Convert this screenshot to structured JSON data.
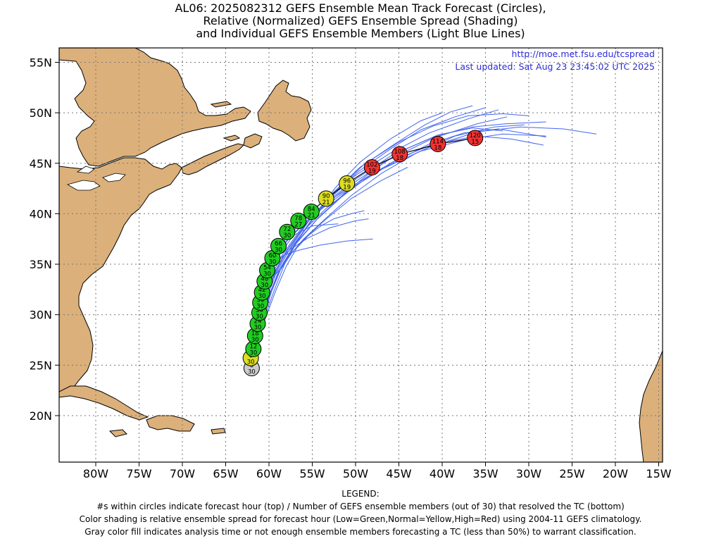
{
  "title": {
    "line1": "AL06: 2025082312 GEFS Ensemble Mean Track Forecast (Circles),",
    "line2": "Relative (Normalized) GEFS Ensemble Spread (Shading)",
    "line3": "and Individual GEFS Ensemble Members (Light Blue Lines)"
  },
  "credit": {
    "url": "http://moe.met.fsu.edu/tcspread",
    "updated": "Last updated: Sat Aug 23 23:45:02 UTC 2025"
  },
  "axes": {
    "lat_labels": [
      "55N",
      "50N",
      "45N",
      "40N",
      "35N",
      "30N",
      "25N",
      "20N"
    ],
    "lon_labels": [
      "80W",
      "75W",
      "70W",
      "65W",
      "60W",
      "55W",
      "50W",
      "45W",
      "40W",
      "35W",
      "30W",
      "25W",
      "20W",
      "15W"
    ]
  },
  "legend": {
    "heading": "LEGEND:",
    "line1": "#s within circles indicate forecast hour (top) / Number of GEFS ensemble members (out of 30) that resolved the TC (bottom)",
    "line2": "Color shading is relative ensemble spread for forecast hour (Low=Green,Normal=Yellow,High=Red) using 2004-11 GEFS climatology.",
    "line3": "Gray color fill indicates analysis time or not enough ensemble members forecasting a TC (less than 50%) to warrant classification."
  },
  "colors": {
    "land": "#dcb07a",
    "member_line": "#4466ee",
    "low": "#22cc22",
    "normal": "#dddd22",
    "high": "#ee3333",
    "analysis": "#cccccc"
  },
  "mean_track": [
    {
      "hour": "0",
      "members": "30",
      "spread": "analysis",
      "lon": -62.0,
      "lat": 24.7
    },
    {
      "hour": "6",
      "members": "30",
      "spread": "normal",
      "lon": -62.1,
      "lat": 25.7
    },
    {
      "hour": "12",
      "members": "30",
      "spread": "low",
      "lon": -61.8,
      "lat": 26.6
    },
    {
      "hour": "18",
      "members": "30",
      "spread": "low",
      "lon": -61.6,
      "lat": 27.9
    },
    {
      "hour": "24",
      "members": "30",
      "spread": "low",
      "lon": -61.3,
      "lat": 29.1
    },
    {
      "hour": "30",
      "members": "30",
      "spread": "low",
      "lon": -61.1,
      "lat": 30.2
    },
    {
      "hour": "36",
      "members": "30",
      "spread": "low",
      "lon": -61.0,
      "lat": 31.2
    },
    {
      "hour": "42",
      "members": "30",
      "spread": "low",
      "lon": -60.8,
      "lat": 32.2
    },
    {
      "hour": "48",
      "members": "30",
      "spread": "low",
      "lon": -60.5,
      "lat": 33.3
    },
    {
      "hour": "54",
      "members": "30",
      "spread": "low",
      "lon": -60.2,
      "lat": 34.4
    },
    {
      "hour": "60",
      "members": "30",
      "spread": "low",
      "lon": -59.6,
      "lat": 35.6
    },
    {
      "hour": "66",
      "members": "30",
      "spread": "low",
      "lon": -58.9,
      "lat": 36.8
    },
    {
      "hour": "72",
      "members": "30",
      "spread": "low",
      "lon": -57.9,
      "lat": 38.2
    },
    {
      "hour": "78",
      "members": "27",
      "spread": "low",
      "lon": -56.6,
      "lat": 39.3
    },
    {
      "hour": "84",
      "members": "21",
      "spread": "low",
      "lon": -55.1,
      "lat": 40.2
    },
    {
      "hour": "90",
      "members": "21",
      "spread": "normal",
      "lon": -53.4,
      "lat": 41.5
    },
    {
      "hour": "96",
      "members": "19",
      "spread": "normal",
      "lon": -51.0,
      "lat": 43.0
    },
    {
      "hour": "102",
      "members": "19",
      "spread": "high",
      "lon": -48.1,
      "lat": 44.6
    },
    {
      "hour": "108",
      "members": "18",
      "spread": "high",
      "lon": -44.9,
      "lat": 45.9
    },
    {
      "hour": "114",
      "members": "18",
      "spread": "high",
      "lon": -40.5,
      "lat": 46.9
    },
    {
      "hour": "120",
      "members": "15",
      "spread": "high",
      "lon": -36.2,
      "lat": 47.5
    }
  ],
  "members": [
    [
      [
        -62.0,
        24.7
      ],
      [
        -61.9,
        27.0
      ],
      [
        -61.5,
        29.5
      ],
      [
        -61.2,
        31.5
      ],
      [
        -60.6,
        33.5
      ],
      [
        -59.6,
        35.5
      ],
      [
        -58.0,
        37.6
      ],
      [
        -55.8,
        39.5
      ],
      [
        -52.5,
        41.6
      ],
      [
        -48.0,
        44.0
      ],
      [
        -42.5,
        46.2
      ],
      [
        -37.0,
        47.4
      ],
      [
        -33.0,
        47.9
      ],
      [
        -28.0,
        47.7
      ]
    ],
    [
      [
        -62.0,
        24.7
      ],
      [
        -61.8,
        27.0
      ],
      [
        -61.4,
        29.5
      ],
      [
        -61.0,
        31.5
      ],
      [
        -60.4,
        33.6
      ],
      [
        -59.2,
        35.7
      ],
      [
        -57.5,
        37.8
      ],
      [
        -55.0,
        39.8
      ],
      [
        -51.5,
        42.0
      ],
      [
        -47.0,
        44.4
      ],
      [
        -41.5,
        46.6
      ],
      [
        -36.0,
        48.1
      ],
      [
        -31.0,
        48.6
      ],
      [
        -26.0,
        48.4
      ],
      [
        -22.2,
        47.9
      ]
    ],
    [
      [
        -62.0,
        24.7
      ],
      [
        -61.8,
        27.0
      ],
      [
        -61.3,
        29.5
      ],
      [
        -60.8,
        31.6
      ],
      [
        -60.0,
        33.7
      ],
      [
        -58.8,
        35.9
      ],
      [
        -57.0,
        38.1
      ],
      [
        -54.5,
        40.2
      ],
      [
        -51.0,
        42.6
      ],
      [
        -46.5,
        45.2
      ],
      [
        -41.0,
        47.5
      ],
      [
        -36.0,
        48.9
      ],
      [
        -32.5,
        49.6
      ]
    ],
    [
      [
        -62.0,
        24.7
      ],
      [
        -61.7,
        27.0
      ],
      [
        -61.2,
        29.5
      ],
      [
        -60.7,
        31.6
      ],
      [
        -59.8,
        33.8
      ],
      [
        -58.4,
        36.0
      ],
      [
        -56.4,
        38.4
      ],
      [
        -53.8,
        40.8
      ],
      [
        -50.2,
        43.3
      ],
      [
        -45.8,
        45.8
      ],
      [
        -41.0,
        47.6
      ],
      [
        -36.5,
        48.6
      ],
      [
        -32.8,
        48.9
      ],
      [
        -28.0,
        49.1
      ]
    ],
    [
      [
        -62.0,
        24.7
      ],
      [
        -61.7,
        27.0
      ],
      [
        -61.1,
        29.6
      ],
      [
        -60.5,
        31.8
      ],
      [
        -59.5,
        34.0
      ],
      [
        -58.0,
        36.3
      ],
      [
        -56.0,
        38.7
      ],
      [
        -53.4,
        41.2
      ],
      [
        -50.0,
        43.8
      ],
      [
        -46.0,
        46.0
      ],
      [
        -41.5,
        48.0
      ],
      [
        -37.0,
        49.4
      ],
      [
        -33.5,
        50.3
      ]
    ],
    [
      [
        -62.0,
        24.7
      ],
      [
        -61.7,
        27.0
      ],
      [
        -61.0,
        29.6
      ],
      [
        -60.3,
        31.9
      ],
      [
        -59.3,
        34.2
      ],
      [
        -57.7,
        36.6
      ],
      [
        -55.6,
        39.1
      ],
      [
        -53.0,
        41.6
      ],
      [
        -49.8,
        44.1
      ],
      [
        -46.0,
        46.4
      ],
      [
        -42.5,
        48.3
      ],
      [
        -38.5,
        49.6
      ],
      [
        -35.0,
        50.5
      ]
    ],
    [
      [
        -62.0,
        24.7
      ],
      [
        -61.6,
        27.0
      ],
      [
        -60.9,
        29.7
      ],
      [
        -60.1,
        32.0
      ],
      [
        -59.1,
        34.3
      ],
      [
        -57.4,
        36.8
      ],
      [
        -55.3,
        39.4
      ],
      [
        -52.7,
        42.0
      ],
      [
        -49.5,
        44.6
      ],
      [
        -45.5,
        46.9
      ],
      [
        -42.0,
        48.8
      ],
      [
        -39.0,
        50.1
      ],
      [
        -36.5,
        50.7
      ]
    ],
    [
      [
        -62.0,
        24.7
      ],
      [
        -61.6,
        27.0
      ],
      [
        -60.8,
        29.7
      ],
      [
        -59.9,
        32.1
      ],
      [
        -58.8,
        34.5
      ],
      [
        -57.0,
        37.0
      ],
      [
        -54.8,
        39.6
      ],
      [
        -52.2,
        42.3
      ],
      [
        -49.0,
        44.9
      ],
      [
        -45.0,
        47.1
      ],
      [
        -41.0,
        48.7
      ],
      [
        -37.0,
        49.7
      ],
      [
        -33.0,
        49.9
      ],
      [
        -30.0,
        49.7
      ]
    ],
    [
      [
        -62.0,
        24.7
      ],
      [
        -61.5,
        27.0
      ],
      [
        -60.6,
        29.8
      ],
      [
        -59.7,
        32.3
      ],
      [
        -58.5,
        34.8
      ],
      [
        -56.7,
        37.4
      ],
      [
        -54.6,
        40.0
      ],
      [
        -52.3,
        42.6
      ],
      [
        -49.5,
        45.1
      ],
      [
        -46.0,
        47.4
      ],
      [
        -42.5,
        49.2
      ],
      [
        -40.0,
        50.0
      ]
    ],
    [
      [
        -62.0,
        24.7
      ],
      [
        -61.5,
        27.0
      ],
      [
        -60.5,
        29.8
      ],
      [
        -59.4,
        32.4
      ],
      [
        -58.2,
        35.0
      ],
      [
        -56.5,
        37.6
      ],
      [
        -55.0,
        39.5
      ],
      [
        -54.0,
        40.4
      ]
    ],
    [
      [
        -62.0,
        24.7
      ],
      [
        -61.4,
        27.0
      ],
      [
        -60.3,
        29.9
      ],
      [
        -59.2,
        32.4
      ],
      [
        -58.0,
        34.8
      ],
      [
        -56.8,
        36.6
      ],
      [
        -55.5,
        37.8
      ],
      [
        -54.0,
        38.8
      ],
      [
        -52.5,
        39.5
      ],
      [
        -50.5,
        40.0
      ],
      [
        -49.0,
        40.3
      ]
    ],
    [
      [
        -62.0,
        24.7
      ],
      [
        -61.8,
        27.0
      ],
      [
        -61.5,
        29.5
      ],
      [
        -61.1,
        31.5
      ],
      [
        -60.3,
        33.6
      ],
      [
        -59.0,
        35.3
      ],
      [
        -57.5,
        36.5
      ],
      [
        -55.5,
        37.6
      ],
      [
        -53.0,
        38.6
      ],
      [
        -50.0,
        39.3
      ],
      [
        -48.5,
        39.5
      ]
    ],
    [
      [
        -62.0,
        24.7
      ],
      [
        -61.8,
        27.0
      ],
      [
        -61.4,
        29.5
      ],
      [
        -61.0,
        31.4
      ],
      [
        -60.4,
        33.3
      ],
      [
        -59.6,
        34.9
      ],
      [
        -58.3,
        35.9
      ],
      [
        -56.5,
        36.4
      ],
      [
        -54.0,
        36.9
      ],
      [
        -51.0,
        37.3
      ],
      [
        -48.0,
        37.5
      ]
    ],
    [
      [
        -62.0,
        24.7
      ],
      [
        -61.9,
        27.0
      ],
      [
        -61.6,
        29.4
      ],
      [
        -61.3,
        31.3
      ],
      [
        -61.0,
        33.0
      ],
      [
        -60.5,
        34.6
      ],
      [
        -59.8,
        35.8
      ],
      [
        -58.7,
        36.8
      ],
      [
        -57.3,
        37.8
      ],
      [
        -55.0,
        38.8
      ],
      [
        -52.0,
        39.0
      ]
    ],
    [
      [
        -62.0,
        24.7
      ],
      [
        -61.7,
        27.0
      ],
      [
        -61.2,
        29.5
      ],
      [
        -60.6,
        31.5
      ],
      [
        -59.6,
        33.5
      ],
      [
        -58.0,
        35.5
      ],
      [
        -56.0,
        37.5
      ],
      [
        -53.5,
        39.5
      ],
      [
        -50.5,
        41.8
      ],
      [
        -47.0,
        44.0
      ],
      [
        -43.0,
        46.0
      ],
      [
        -38.5,
        47.7
      ],
      [
        -34.0,
        48.6
      ],
      [
        -30.5,
        48.8
      ]
    ],
    [
      [
        -62.0,
        24.7
      ],
      [
        -61.7,
        27.0
      ],
      [
        -61.1,
        29.6
      ],
      [
        -60.4,
        31.7
      ],
      [
        -59.4,
        33.9
      ],
      [
        -57.8,
        36.2
      ],
      [
        -55.8,
        38.5
      ],
      [
        -53.3,
        40.6
      ],
      [
        -50.0,
        42.8
      ],
      [
        -46.0,
        44.9
      ],
      [
        -41.5,
        46.9
      ],
      [
        -37.5,
        48.0
      ],
      [
        -33.5,
        48.4
      ],
      [
        -28.0,
        47.6
      ]
    ],
    [
      [
        -62.0,
        24.7
      ],
      [
        -61.6,
        27.0
      ],
      [
        -60.9,
        29.6
      ],
      [
        -60.0,
        31.9
      ],
      [
        -58.8,
        34.3
      ],
      [
        -57.0,
        36.9
      ],
      [
        -54.5,
        39.4
      ],
      [
        -51.7,
        41.6
      ],
      [
        -48.5,
        43.7
      ],
      [
        -45.0,
        45.5
      ],
      [
        -41.0,
        46.9
      ],
      [
        -36.0,
        47.7
      ],
      [
        -32.0,
        47.4
      ],
      [
        -28.3,
        46.8
      ]
    ],
    [
      [
        -62.0,
        24.7
      ],
      [
        -61.5,
        27.0
      ],
      [
        -60.7,
        29.7
      ],
      [
        -59.8,
        32.1
      ],
      [
        -58.6,
        34.6
      ],
      [
        -56.8,
        37.2
      ],
      [
        -54.3,
        39.6
      ],
      [
        -51.3,
        42.0
      ],
      [
        -48.0,
        44.3
      ],
      [
        -44.5,
        46.3
      ],
      [
        -40.5,
        47.8
      ],
      [
        -36.5,
        48.5
      ],
      [
        -33.0,
        48.2
      ]
    ],
    [
      [
        -62.0,
        24.7
      ],
      [
        -61.6,
        27.0
      ],
      [
        -60.8,
        29.7
      ],
      [
        -59.9,
        32.1
      ],
      [
        -58.7,
        34.4
      ],
      [
        -57.3,
        36.2
      ],
      [
        -55.8,
        37.6
      ],
      [
        -53.5,
        39.4
      ],
      [
        -50.5,
        41.5
      ],
      [
        -47.0,
        43.3
      ],
      [
        -44.0,
        44.6
      ]
    ]
  ]
}
